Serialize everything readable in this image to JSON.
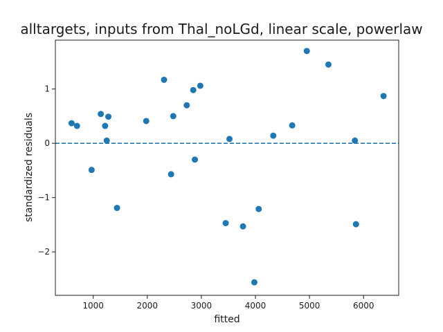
{
  "chart_data": {
    "type": "scatter",
    "title": "alltargets, inputs from Thal_noLGd, linear scale, powerlaw",
    "xlabel": "fitted",
    "ylabel": "standardized residuals",
    "xlim": [
      300,
      6650
    ],
    "ylim": [
      -2.8,
      1.9
    ],
    "xticks": [
      1000,
      2000,
      3000,
      4000,
      5000,
      6000
    ],
    "xtick_labels": [
      "1000",
      "2000",
      "3000",
      "4000",
      "5000",
      "6000"
    ],
    "yticks": [
      -2,
      -1,
      0,
      1
    ],
    "ytick_labels": [
      "−2",
      "−1",
      "0",
      "1"
    ],
    "grid": false,
    "reference_line": {
      "y": 0,
      "style": "dashed"
    },
    "colors": {
      "points": "#1f77b4",
      "reference_line": "#1f77b4",
      "axes": "#1a1a1a"
    },
    "points": [
      {
        "x": 600,
        "y": 0.37
      },
      {
        "x": 700,
        "y": 0.32
      },
      {
        "x": 970,
        "y": -0.49
      },
      {
        "x": 1140,
        "y": 0.54
      },
      {
        "x": 1220,
        "y": 0.32
      },
      {
        "x": 1250,
        "y": 0.05
      },
      {
        "x": 1280,
        "y": 0.49
      },
      {
        "x": 1440,
        "y": -1.19
      },
      {
        "x": 1980,
        "y": 0.41
      },
      {
        "x": 2310,
        "y": 1.17
      },
      {
        "x": 2440,
        "y": -0.57
      },
      {
        "x": 2480,
        "y": 0.5
      },
      {
        "x": 2730,
        "y": 0.7
      },
      {
        "x": 2850,
        "y": 0.98
      },
      {
        "x": 2880,
        "y": -0.3
      },
      {
        "x": 2980,
        "y": 1.06
      },
      {
        "x": 3450,
        "y": -1.47
      },
      {
        "x": 3520,
        "y": 0.08
      },
      {
        "x": 3770,
        "y": -1.53
      },
      {
        "x": 3980,
        "y": -2.56
      },
      {
        "x": 4060,
        "y": -1.21
      },
      {
        "x": 4330,
        "y": 0.14
      },
      {
        "x": 4680,
        "y": 0.33
      },
      {
        "x": 4950,
        "y": 1.7
      },
      {
        "x": 5350,
        "y": 1.45
      },
      {
        "x": 5840,
        "y": 0.05
      },
      {
        "x": 5860,
        "y": -1.49
      },
      {
        "x": 6370,
        "y": 0.87
      }
    ]
  }
}
